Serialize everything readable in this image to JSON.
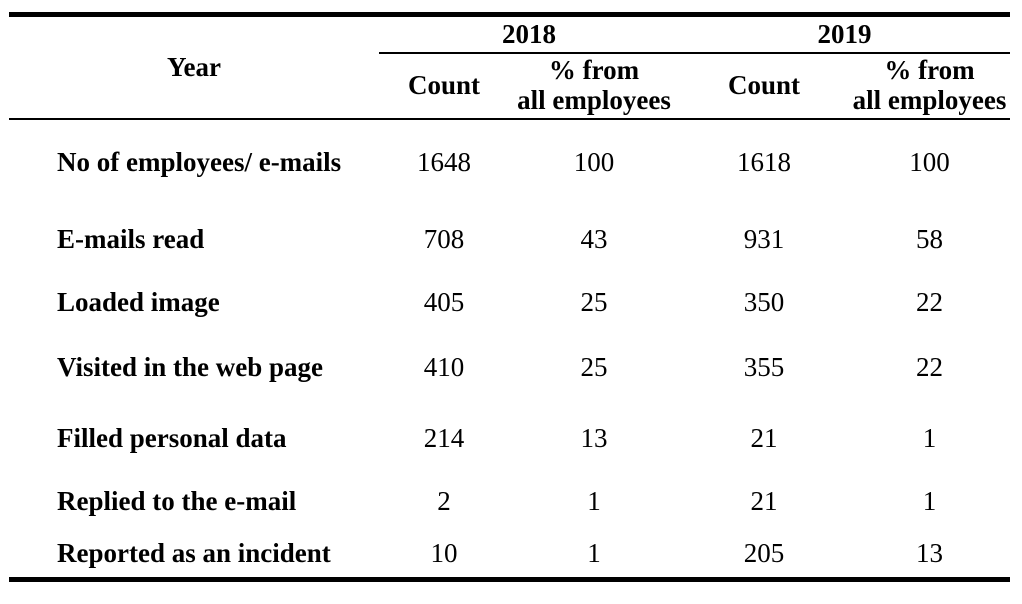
{
  "table": {
    "header": {
      "year_label": "Year",
      "groups": [
        {
          "year": "2018",
          "count_label": "Count",
          "pct_line1": "% from",
          "pct_line2": "all employees"
        },
        {
          "year": "2019",
          "count_label": "Count",
          "pct_line1": "% from",
          "pct_line2": "all employees"
        }
      ]
    },
    "rows": [
      {
        "label": "No of employees/ e-mails",
        "values": [
          "1648",
          "100",
          "1618",
          "100"
        ]
      },
      {
        "label": "E-mails read",
        "values": [
          "708",
          "43",
          "931",
          "58"
        ]
      },
      {
        "label": "Loaded image",
        "values": [
          "405",
          "25",
          "350",
          "22"
        ]
      },
      {
        "label": "Visited in the web page",
        "values": [
          "410",
          "25",
          "355",
          "22"
        ]
      },
      {
        "label": "Filled personal data",
        "values": [
          "214",
          "13",
          "21",
          "1"
        ]
      },
      {
        "label": "Replied to the e-mail",
        "values": [
          "2",
          "1",
          "21",
          "1"
        ]
      },
      {
        "label": "Reported as an incident",
        "values": [
          "10",
          "1",
          "205",
          "13"
        ]
      }
    ],
    "colors": {
      "text": "#000000",
      "background": "#ffffff",
      "rule": "#000000"
    }
  },
  "chart_data": {
    "type": "table",
    "title": "",
    "columns": [
      "Year",
      "2018 Count",
      "2018 % from all employees",
      "2019 Count",
      "2019 % from all employees"
    ],
    "rows": [
      [
        "No of employees/ e-mails",
        1648,
        100,
        1618,
        100
      ],
      [
        "E-mails read",
        708,
        43,
        931,
        58
      ],
      [
        "Loaded image",
        405,
        25,
        350,
        22
      ],
      [
        "Visited in the web page",
        410,
        25,
        355,
        22
      ],
      [
        "Filled personal data",
        214,
        13,
        21,
        1
      ],
      [
        "Replied to the e-mail",
        2,
        1,
        21,
        1
      ],
      [
        "Reported as an incident",
        10,
        1,
        205,
        13
      ]
    ]
  }
}
